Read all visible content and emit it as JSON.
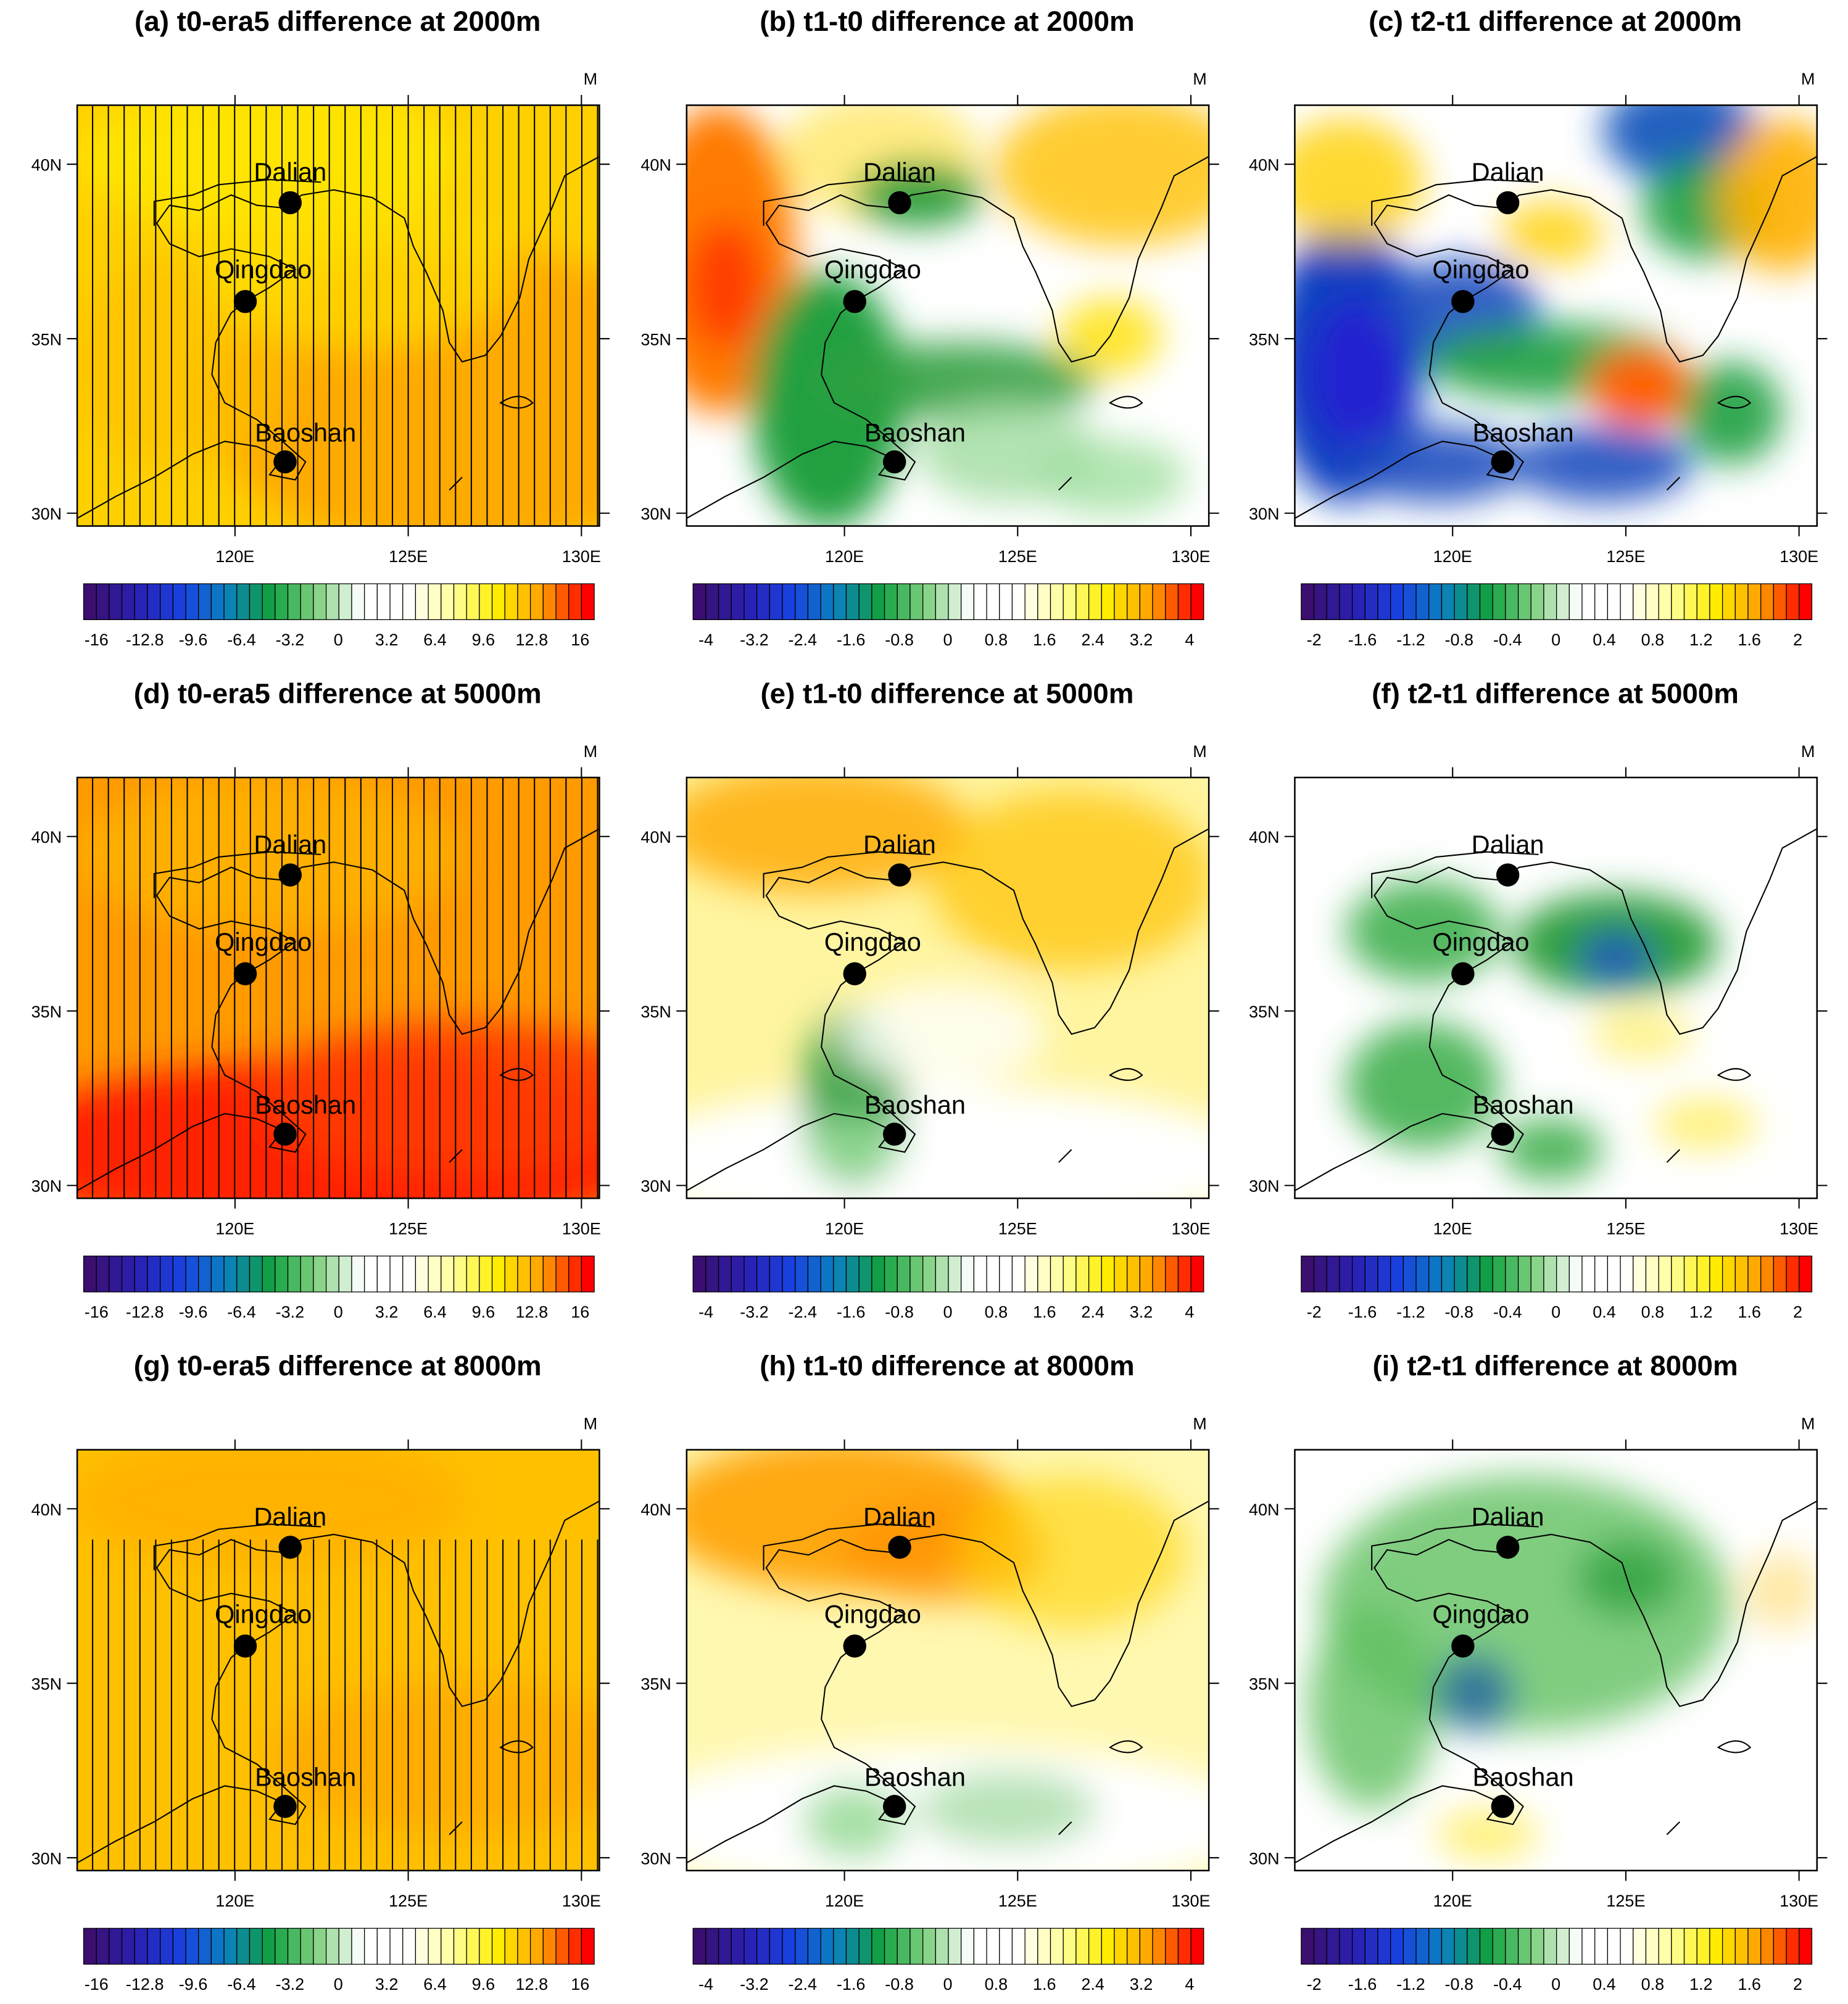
{
  "panels": [
    {
      "title": "(a) t0-era5 difference at 2000m",
      "colorbar_labels": [
        -16,
        -12.8,
        -9.6,
        -6.4,
        -3.2,
        0,
        3.2,
        6.4,
        9.6,
        12.8,
        16
      ]
    },
    {
      "title": "(b) t1-t0 difference at 2000m",
      "colorbar_labels": [
        -4,
        -3.2,
        -2.4,
        -1.6,
        -0.8,
        0,
        0.8,
        1.6,
        2.4,
        3.2,
        4
      ]
    },
    {
      "title": "(c) t2-t1 difference at 2000m",
      "colorbar_labels": [
        -2,
        -1.6,
        -1.2,
        -0.8,
        -0.4,
        0,
        0.4,
        0.8,
        1.2,
        1.6,
        2
      ]
    },
    {
      "title": "(d) t0-era5 difference at 5000m",
      "colorbar_labels": [
        -16,
        -12.8,
        -9.6,
        -6.4,
        -3.2,
        0,
        3.2,
        6.4,
        9.6,
        12.8,
        16
      ]
    },
    {
      "title": "(e) t1-t0 difference at 5000m",
      "colorbar_labels": [
        -4,
        -3.2,
        -2.4,
        -1.6,
        -0.8,
        0,
        0.8,
        1.6,
        2.4,
        3.2,
        4
      ]
    },
    {
      "title": "(f) t2-t1 difference at 5000m",
      "colorbar_labels": [
        -2,
        -1.6,
        -1.2,
        -0.8,
        -0.4,
        0,
        0.4,
        0.8,
        1.2,
        1.6,
        2
      ]
    },
    {
      "title": "(g) t0-era5 difference at 8000m",
      "colorbar_labels": [
        -16,
        -12.8,
        -9.6,
        -6.4,
        -3.2,
        0,
        3.2,
        6.4,
        9.6,
        12.8,
        16
      ]
    },
    {
      "title": "(h) t1-t0 difference at 8000m",
      "colorbar_labels": [
        -4,
        -3.2,
        -2.4,
        -1.6,
        -0.8,
        0,
        0.8,
        1.6,
        2.4,
        3.2,
        4
      ]
    },
    {
      "title": "(i) t2-t1 difference at 8000m",
      "colorbar_labels": [
        -2,
        -1.6,
        -1.2,
        -0.8,
        -0.4,
        0,
        0.4,
        0.8,
        1.2,
        1.6,
        2
      ]
    }
  ],
  "stations": [
    "Dalian",
    "Qingdao",
    "Baoshan"
  ],
  "x_labels": [
    "120E",
    "125E",
    "130E"
  ],
  "y_labels": [
    "40N",
    "35N",
    "30N"
  ],
  "corner_label": "M"
}
